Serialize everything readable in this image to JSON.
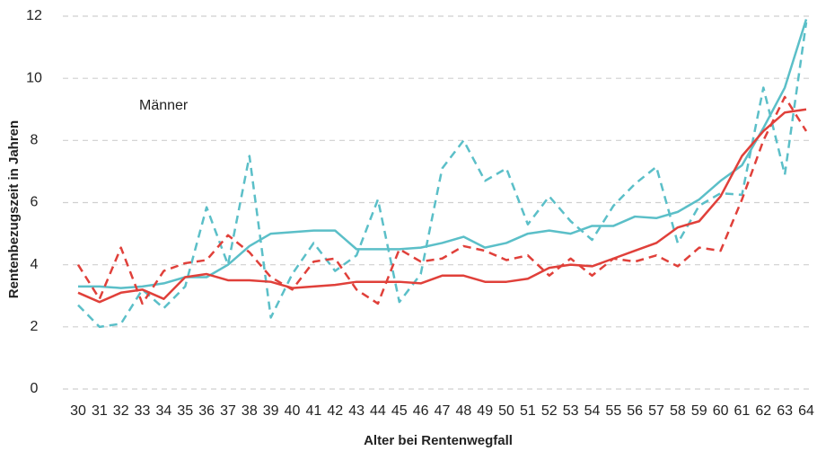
{
  "chart_data": {
    "type": "line",
    "annotation": "Männer",
    "x_label": "Alter bei Rentenwegfall",
    "y_label": "Rentenbezugszeit in Jahren",
    "categories": [
      "30",
      "31",
      "32",
      "33",
      "34",
      "35",
      "36",
      "37",
      "38",
      "39",
      "40",
      "41",
      "42",
      "43",
      "44",
      "45",
      "46",
      "47",
      "48",
      "49",
      "50",
      "51",
      "52",
      "53",
      "54",
      "55",
      "56",
      "57",
      "58",
      "59",
      "60",
      "61",
      "62",
      "63",
      "64"
    ],
    "ylim": [
      0,
      12
    ],
    "yticks": [
      0,
      2,
      4,
      6,
      8,
      10,
      12
    ],
    "grid": true,
    "series": [
      {
        "color": "#5bbfc8",
        "dash": false,
        "values": [
          3.3,
          3.3,
          3.25,
          3.3,
          3.4,
          3.6,
          3.6,
          4.0,
          4.6,
          5.0,
          5.05,
          5.1,
          5.1,
          4.5,
          4.5,
          4.5,
          4.55,
          4.7,
          4.9,
          4.55,
          4.7,
          5.0,
          5.1,
          5.0,
          5.25,
          5.25,
          5.55,
          5.5,
          5.7,
          6.1,
          6.7,
          7.2,
          8.4,
          9.7,
          11.9
        ]
      },
      {
        "color": "#5bbfc8",
        "dash": true,
        "values": [
          2.7,
          2.0,
          2.1,
          3.2,
          2.6,
          3.3,
          5.85,
          4.0,
          7.5,
          2.3,
          3.7,
          4.7,
          3.8,
          4.3,
          6.1,
          2.8,
          3.7,
          7.1,
          8.0,
          6.7,
          7.1,
          5.3,
          6.2,
          5.4,
          4.8,
          5.9,
          6.6,
          7.15,
          4.7,
          5.9,
          6.3,
          6.25,
          9.7,
          6.9,
          11.8
        ]
      },
      {
        "color": "#e0403a",
        "dash": false,
        "values": [
          3.1,
          2.8,
          3.1,
          3.2,
          2.9,
          3.6,
          3.7,
          3.5,
          3.5,
          3.45,
          3.25,
          3.3,
          3.35,
          3.45,
          3.45,
          3.45,
          3.4,
          3.65,
          3.65,
          3.45,
          3.45,
          3.55,
          3.9,
          4.0,
          3.95,
          4.2,
          4.45,
          4.7,
          5.2,
          5.4,
          6.2,
          7.5,
          8.3,
          8.9,
          9.0
        ]
      },
      {
        "color": "#e0403a",
        "dash": true,
        "values": [
          4.0,
          2.9,
          4.55,
          2.75,
          3.8,
          4.05,
          4.15,
          4.95,
          4.4,
          3.6,
          3.2,
          4.1,
          4.2,
          3.2,
          2.75,
          4.5,
          4.1,
          4.2,
          4.6,
          4.45,
          4.15,
          4.3,
          3.65,
          4.2,
          3.65,
          4.2,
          4.1,
          4.3,
          3.95,
          4.55,
          4.45,
          6.1,
          8.0,
          9.4,
          8.3
        ]
      }
    ]
  }
}
